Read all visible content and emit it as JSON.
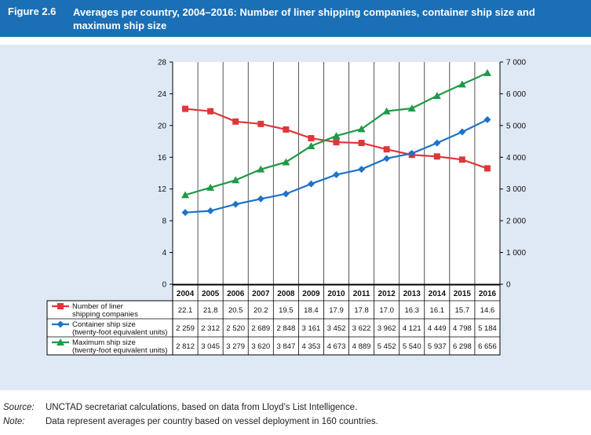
{
  "figure": {
    "number": "Figure 2.6",
    "title": "Averages per country, 2004–2016: Number of liner shipping companies, container ship size and maximum ship size"
  },
  "chart_data": {
    "type": "line",
    "categories": [
      "2004",
      "2005",
      "2006",
      "2007",
      "2008",
      "2009",
      "2010",
      "2011",
      "2012",
      "2013",
      "2014",
      "2015",
      "2016"
    ],
    "y_left": {
      "min": 0,
      "max": 28,
      "ticks": [
        "0",
        "4",
        "8",
        "12",
        "16",
        "20",
        "24",
        "28"
      ]
    },
    "y_right": {
      "min": 0,
      "max": 7000,
      "ticks": [
        "0",
        "1 000",
        "2 000",
        "3 000",
        "4 000",
        "5 000",
        "6 000",
        "7 000"
      ]
    },
    "grid": "vertical",
    "series": [
      {
        "name_line1": "Number of liner",
        "name_line2": "shipping companies",
        "axis": "left",
        "color": "#e0353b",
        "marker": "square",
        "values": [
          22.1,
          21.8,
          20.5,
          20.2,
          19.5,
          18.4,
          17.9,
          17.8,
          17.0,
          16.3,
          16.1,
          15.7,
          14.6
        ],
        "labels": [
          "22.1",
          "21.8",
          "20.5",
          "20.2",
          "19.5",
          "18.4",
          "17.9",
          "17.8",
          "17.0",
          "16.3",
          "16.1",
          "15.7",
          "14.6"
        ]
      },
      {
        "name_line1": "Container ship size",
        "name_line2": "(twenty-foot equivalent units)",
        "axis": "right",
        "color": "#1e73c8",
        "marker": "diamond",
        "values": [
          2259,
          2312,
          2520,
          2689,
          2848,
          3161,
          3452,
          3622,
          3962,
          4121,
          4449,
          4798,
          5184
        ],
        "labels": [
          "2 259",
          "2 312",
          "2 520",
          "2 689",
          "2 848",
          "3 161",
          "3 452",
          "3 622",
          "3 962",
          "4 121",
          "4 449",
          "4 798",
          "5 184"
        ]
      },
      {
        "name_line1": "Maximum ship size",
        "name_line2": "(twenty-foot equivalent units)",
        "axis": "right",
        "color": "#1f9a47",
        "marker": "triangle",
        "values": [
          2812,
          3045,
          3279,
          3620,
          3847,
          4353,
          4673,
          4889,
          5452,
          5540,
          5937,
          6298,
          6656
        ],
        "labels": [
          "2 812",
          "3 045",
          "3 279",
          "3 620",
          "3 847",
          "4 353",
          "4 673",
          "4 889",
          "5 452",
          "5 540",
          "5 937",
          "6 298",
          "6 656"
        ]
      }
    ]
  },
  "notes": {
    "source_label": "Source:",
    "source_text": "UNCTAD secretariat calculations, based on data from Lloyd’s List Intelligence.",
    "note_label": "Note:",
    "note_text": "Data represent averages per country based on vessel deployment in 160 countries."
  }
}
